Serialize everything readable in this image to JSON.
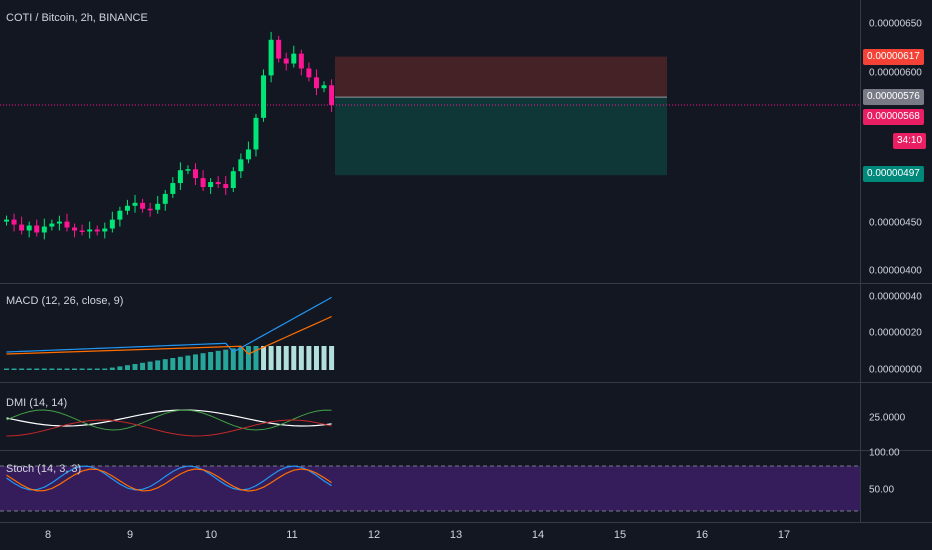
{
  "header": {
    "title": "COTI / Bitcoin, 2h, BINANCE"
  },
  "price_axis": {
    "ticks": [
      "0.00000650",
      "0.00000600",
      "0.00000450",
      "0.00000400"
    ]
  },
  "price_tags": {
    "stop": "0.00000617",
    "entry": "0.00000576",
    "last": "0.00000568",
    "countdown": "34:10",
    "target": "0.00000497"
  },
  "panes": {
    "macd": {
      "title": "MACD (12, 26, close, 9)",
      "ticks": [
        "0.00000040",
        "0.00000020",
        "0.00000000"
      ]
    },
    "dmi": {
      "title": "DMI (14, 14)",
      "ticks": [
        "25.0000"
      ]
    },
    "stoch": {
      "title": "Stoch (14, 3, 3)",
      "ticks": [
        "100.00",
        "50.00"
      ]
    }
  },
  "time_axis": {
    "labels": [
      "8",
      "9",
      "10",
      "11",
      "12",
      "13",
      "14",
      "15",
      "16",
      "17"
    ]
  },
  "colors": {
    "up": "#26a69a",
    "up_bright": "#00e676",
    "down": "#ff1493",
    "stop_zone": "#4a2326",
    "target_zone": "#0f3b3a",
    "stop_tag": "#f44336",
    "entry_tag": "#787b86",
    "last_tag": "#e91e63",
    "target_tag": "#00897b",
    "macd_line": "#2196f3",
    "signal_line": "#ff6d00",
    "stoch_bg": "#3c1f66"
  },
  "chart_data": {
    "type": "candlestick",
    "series": [
      {
        "name": "COTI / Bitcoin",
        "values": [
          452,
          447,
          441,
          446,
          439,
          445,
          448,
          450,
          444,
          441,
          440,
          442,
          440,
          443,
          452,
          461,
          466,
          469,
          463,
          462,
          468,
          478,
          489,
          502,
          503,
          494,
          485,
          490,
          488,
          484,
          501,
          513,
          523,
          555,
          598,
          634,
          615,
          610,
          620,
          605,
          596,
          585,
          588,
          568
        ]
      }
    ],
    "ylim": [
      395,
      660
    ]
  }
}
